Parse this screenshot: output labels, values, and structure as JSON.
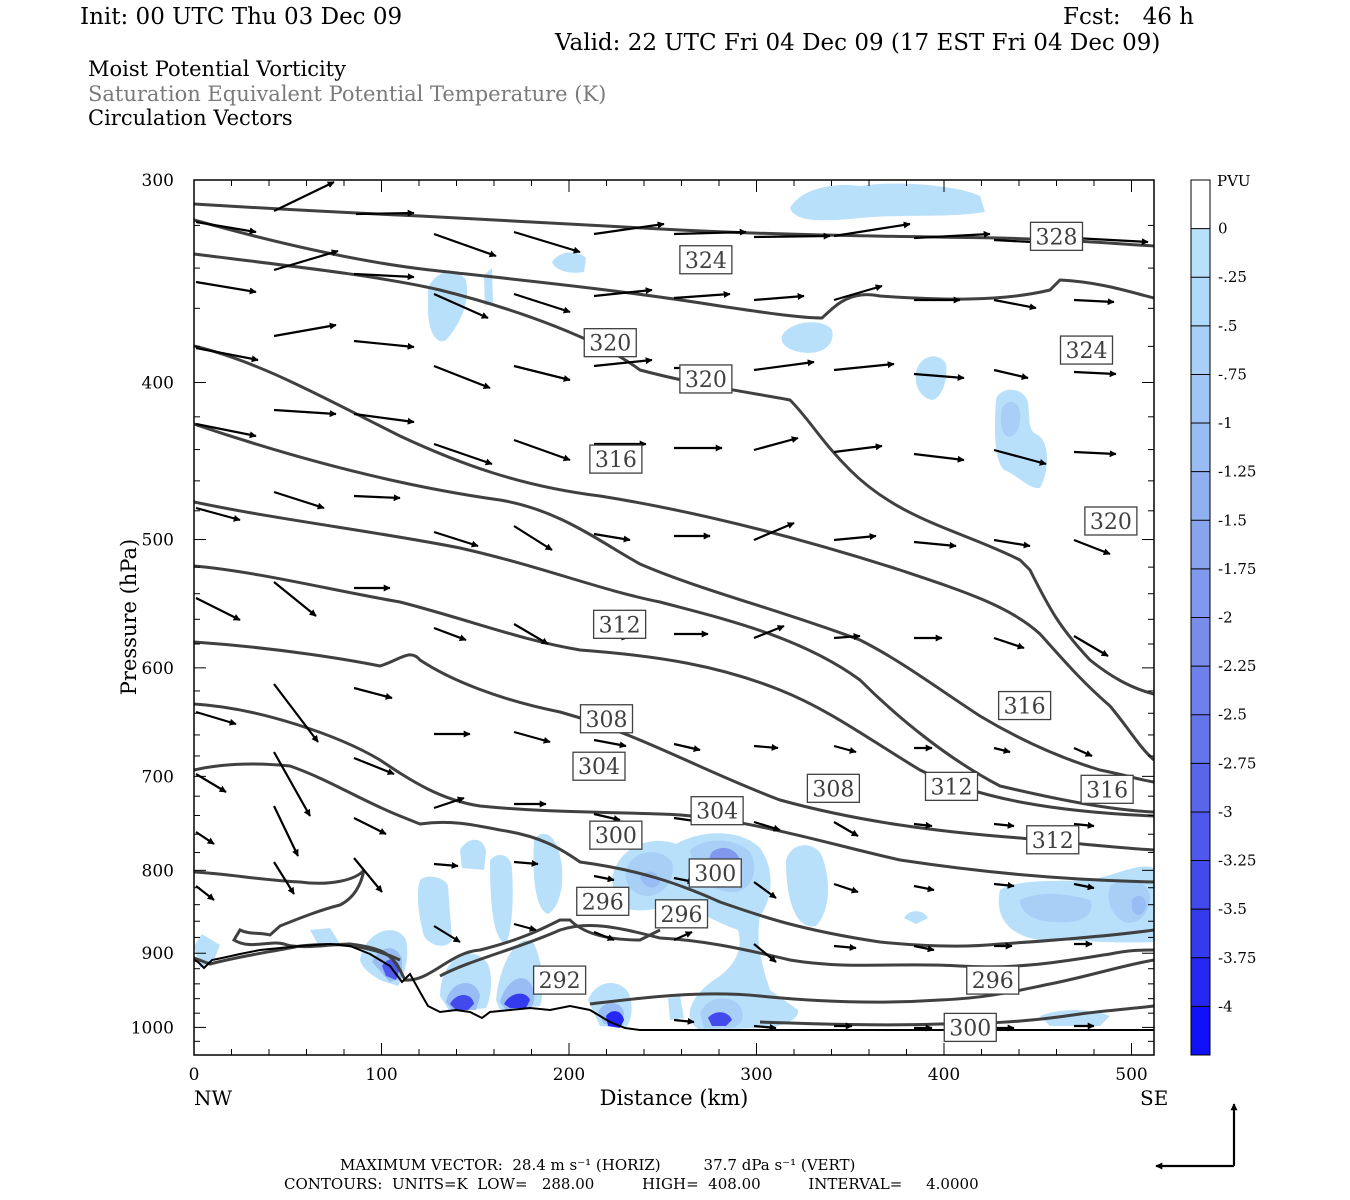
{
  "header": {
    "init": "Init: 00 UTC Thu 03 Dec 09",
    "fcst": "Fcst:   46 h",
    "valid": "Valid: 22 UTC Fri 04 Dec 09 (17 EST Fri 04 Dec 09)"
  },
  "titles": {
    "line1": "Moist Potential Vorticity",
    "line2": "Saturation Equivalent Potential Temperature (K)",
    "line3": "Circulation Vectors"
  },
  "footer": {
    "vector_line": "MAXIMUM VECTOR:  28.4 m s⁻¹ (HORIZ)         37.7 dPa s⁻¹ (VERT)",
    "contour_line": "CONTOURS:  UNITS=K  LOW=   288.00          HIGH=  408.00          INTERVAL=     4.0000"
  },
  "chart_data": {
    "type": "contour",
    "ylabel": "Pressure (hPa)",
    "xlabel": "Distance (km)",
    "x_range": [
      0,
      512
    ],
    "y_range": [
      300,
      1040
    ],
    "y_log": true,
    "x_ticks": [
      0,
      100,
      200,
      300,
      400,
      500
    ],
    "y_ticks": [
      300,
      400,
      500,
      600,
      700,
      800,
      900,
      1000
    ],
    "x_end_labels": {
      "left": "NW",
      "right": "SE"
    },
    "colorbar": {
      "title": "PVU",
      "labels": [
        "0",
        "-.25",
        "-.5",
        "-.75",
        "-1",
        "-1.25",
        "-1.5",
        "-1.75",
        "-2",
        "-2.25",
        "-2.5",
        "-2.75",
        "-3",
        "-3.25",
        "-3.5",
        "-3.75",
        "-4"
      ],
      "colors": [
        "#ffffff",
        "#b8e0fb",
        "#b0daf9",
        "#a8d0f7",
        "#a0c6f5",
        "#98bcf3",
        "#90b0f1",
        "#88a4ef",
        "#8098ed",
        "#788ceb",
        "#6e80eb",
        "#6474ea",
        "#5a66ea",
        "#4e58ea",
        "#424aec",
        "#343aee",
        "#2428f2",
        "#1010f8"
      ]
    },
    "contour_labels": [
      {
        "value": "328",
        "x": 460,
        "p": 325
      },
      {
        "value": "324",
        "x": 273,
        "p": 336
      },
      {
        "value": "324",
        "x": 476,
        "p": 382
      },
      {
        "value": "320",
        "x": 222,
        "p": 378
      },
      {
        "value": "320",
        "x": 273,
        "p": 398
      },
      {
        "value": "320",
        "x": 489,
        "p": 487
      },
      {
        "value": "316",
        "x": 225,
        "p": 446
      },
      {
        "value": "316",
        "x": 443,
        "p": 633
      },
      {
        "value": "316",
        "x": 487,
        "p": 713
      },
      {
        "value": "312",
        "x": 227,
        "p": 564
      },
      {
        "value": "312",
        "x": 404,
        "p": 710
      },
      {
        "value": "312",
        "x": 458,
        "p": 766
      },
      {
        "value": "308",
        "x": 220,
        "p": 645
      },
      {
        "value": "308",
        "x": 341,
        "p": 712
      },
      {
        "value": "304",
        "x": 216,
        "p": 690
      },
      {
        "value": "304",
        "x": 279,
        "p": 735
      },
      {
        "value": "300",
        "x": 225,
        "p": 761
      },
      {
        "value": "300",
        "x": 278,
        "p": 803
      },
      {
        "value": "300",
        "x": 414,
        "p": 1000
      },
      {
        "value": "296",
        "x": 218,
        "p": 836
      },
      {
        "value": "296",
        "x": 260,
        "p": 851
      },
      {
        "value": "296",
        "x": 426,
        "p": 935
      },
      {
        "value": "292",
        "x": 195,
        "p": 935
      }
    ]
  }
}
